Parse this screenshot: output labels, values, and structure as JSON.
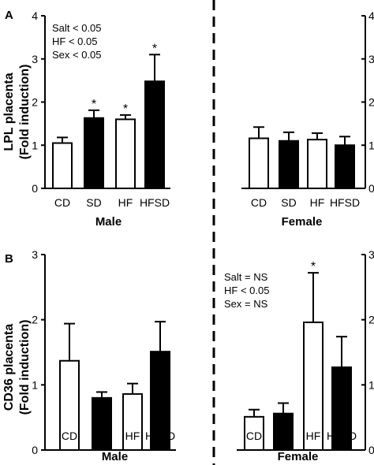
{
  "chart_data": [
    {
      "panel": "A",
      "type": "bar",
      "ylabel_line1": "LPL placenta",
      "ylabel_line2": "(Fold induction)",
      "ylim": [
        0,
        4
      ],
      "yticks": [
        "0",
        "1",
        "2",
        "3",
        "4"
      ],
      "groups": [
        {
          "name": "Male",
          "categories": [
            "CD",
            "SD",
            "HF",
            "HFSD"
          ],
          "values": [
            1.05,
            1.63,
            1.6,
            2.48
          ],
          "errors": [
            0.13,
            0.18,
            0.1,
            0.62
          ],
          "sig": [
            "",
            "*",
            "*",
            "*"
          ],
          "fills": [
            "white",
            "black",
            "white",
            "black"
          ],
          "stats": [
            "Salt < 0.05",
            "HF < 0.05",
            "Sex < 0.05"
          ]
        },
        {
          "name": "Female",
          "categories": [
            "CD",
            "SD",
            "HF",
            "HFSD"
          ],
          "values": [
            1.16,
            1.1,
            1.13,
            1.0
          ],
          "errors": [
            0.26,
            0.2,
            0.15,
            0.2
          ],
          "sig": [
            "",
            "",
            "",
            ""
          ],
          "fills": [
            "white",
            "black",
            "white",
            "black"
          ],
          "stats": []
        }
      ],
      "right_yticks": [
        "0",
        "1",
        "2",
        "3",
        "4"
      ]
    },
    {
      "panel": "B",
      "type": "bar",
      "ylabel_line1": "CD36 placenta",
      "ylabel_line2": "(Fold induction)",
      "ylim": [
        0,
        3
      ],
      "yticks": [
        "0",
        "1",
        "2",
        "3"
      ],
      "groups": [
        {
          "name": "Male",
          "categories": [
            "CD",
            "SD",
            "HF",
            "HFSD"
          ],
          "values": [
            1.37,
            0.8,
            0.86,
            1.51
          ],
          "errors": [
            0.57,
            0.09,
            0.16,
            0.46
          ],
          "sig": [
            "",
            "",
            "",
            ""
          ],
          "fills": [
            "white",
            "black",
            "white",
            "black"
          ],
          "stats": []
        },
        {
          "name": "Female",
          "categories": [
            "CD",
            "SD",
            "HF",
            "HFSD"
          ],
          "values": [
            0.51,
            0.56,
            1.96,
            1.27
          ],
          "errors": [
            0.11,
            0.16,
            0.76,
            0.47
          ],
          "sig": [
            "",
            "",
            "*",
            ""
          ],
          "fills": [
            "white",
            "black",
            "white",
            "black"
          ],
          "stats": [
            "Salt = NS",
            "HF < 0.05",
            "Sex = NS"
          ]
        }
      ],
      "right_yticks": [
        "0",
        "1",
        "2",
        "3"
      ]
    }
  ]
}
